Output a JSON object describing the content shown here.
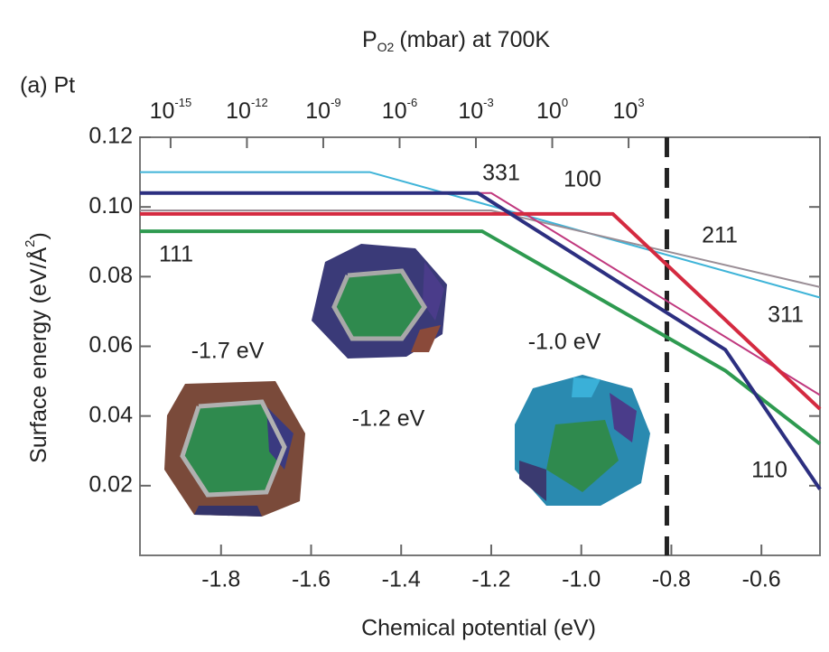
{
  "chart_data": {
    "type": "line",
    "panel_label": "(a) Pt",
    "x2label": {
      "symbol": "P",
      "subscript": "O2",
      "text": "(mbar) at 700K"
    },
    "ylabel": {
      "text": "Surface energy (eV/Å",
      "superscript": "2",
      "close": ")"
    },
    "xlabel": "Chemical potential (eV)",
    "xlim": [
      -1.98,
      -0.47
    ],
    "ylim": [
      0,
      0.12
    ],
    "xticks": [
      -1.8,
      -1.6,
      -1.4,
      -1.2,
      {
        "value": -1.0,
        "label": "-1.0"
      },
      -0.8,
      -0.6
    ],
    "yticks": [
      {
        "value": 0.02,
        "label": "0.02"
      },
      0.04,
      0.06,
      0.08,
      {
        "value": 0.1,
        "label": "0.10"
      },
      0.12
    ],
    "x2lim": [
      6.3e-17,
      32000000000.0
    ],
    "x2log": true,
    "x2ticks": [
      {
        "value": 1e-15,
        "label": "10-15"
      },
      {
        "value": 1e-12,
        "label": "10-12"
      },
      {
        "value": 1e-09,
        "label": "10-9"
      },
      {
        "value": 1e-06,
        "label": "10-6"
      },
      {
        "value": 0.001,
        "label": "10-3"
      },
      {
        "value": 1,
        "label": "100"
      },
      {
        "value": 1000,
        "label": "103"
      }
    ],
    "x2_mu_per_decade": [
      -1.912,
      0.0565
    ],
    "vline": -0.81,
    "series": [
      {
        "name": "311",
        "color": "#3fb4d8",
        "width": 2,
        "x": [
          -1.98,
          -1.47,
          -0.47
        ],
        "values": [
          0.11,
          0.11,
          0.074
        ]
      },
      {
        "name": "211",
        "color": "#9a8e96",
        "width": 2,
        "x": [
          -1.98,
          -1.2,
          -0.47
        ],
        "values": [
          0.099,
          0.099,
          0.077
        ]
      },
      {
        "name": "331",
        "color": "#c0387e",
        "width": 2,
        "x": [
          -1.98,
          -1.2,
          -0.47
        ],
        "values": [
          0.104,
          0.104,
          0.046
        ]
      },
      {
        "name": "100",
        "color": "#d42a40",
        "width": 4,
        "x": [
          -1.98,
          -0.93,
          -0.47
        ],
        "values": [
          0.098,
          0.098,
          0.042
        ]
      },
      {
        "name": "111",
        "color": "#2e9a50",
        "width": 4,
        "x": [
          -1.98,
          -1.22,
          -0.68,
          -0.47
        ],
        "values": [
          0.093,
          0.093,
          0.053,
          0.032
        ]
      },
      {
        "name": "110",
        "color": "#2c2f80",
        "width": 4,
        "x": [
          -1.98,
          -1.23,
          -0.68,
          -0.47
        ],
        "values": [
          0.104,
          0.104,
          0.059,
          0.019
        ]
      }
    ],
    "annotations": [
      "-1.7 eV",
      "-1.2 eV",
      "-1.0 eV"
    ]
  }
}
